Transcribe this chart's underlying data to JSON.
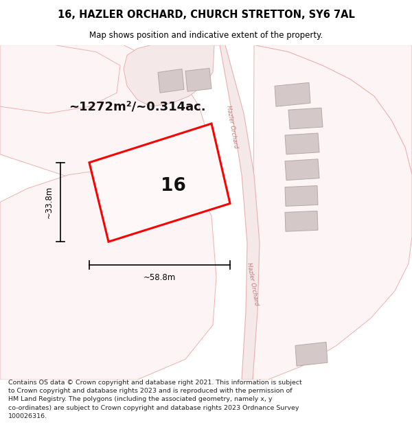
{
  "title": "16, HAZLER ORCHARD, CHURCH STRETTON, SY6 7AL",
  "subtitle": "Map shows position and indicative extent of the property.",
  "footer": "Contains OS data © Crown copyright and database right 2021. This information is subject\nto Crown copyright and database rights 2023 and is reproduced with the permission of\nHM Land Registry. The polygons (including the associated geometry, namely x, y\nco-ordinates) are subject to Crown copyright and database rights 2023 Ordnance Survey\n100026316.",
  "area_label": "~1272m²/~0.314ac.",
  "width_label": "~58.8m",
  "height_label": "~33.8m",
  "plot_number": "16",
  "bg_color": "#ffffff",
  "map_bg": "#ffffff",
  "boundary_color": "#f0b0b0",
  "plot_outline_color": "#ff0000",
  "building_color": "#d4c8c8",
  "dim_color": "#000000",
  "title_color": "#000000",
  "road_label_color": "#c07878",
  "road1_label": "Hazler Orchard",
  "road2_label": "Hazler Orchard",
  "road_fill": "#f5e8e8",
  "road_edge": "#e8b0b0",
  "parcel_fill": "#fdf5f5",
  "parcel_edge": "#f0b0b0"
}
